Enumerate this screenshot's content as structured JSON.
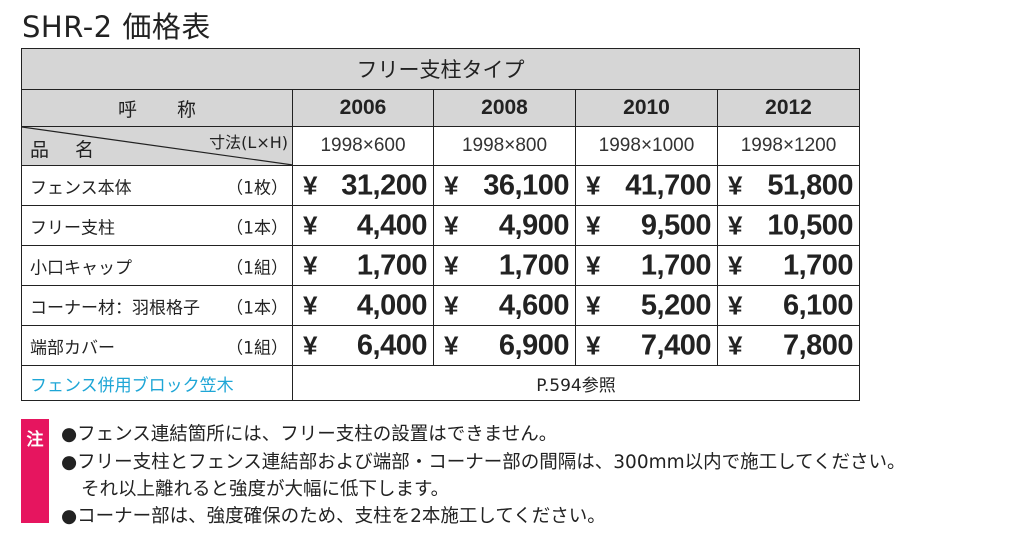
{
  "title": "SHR-2 価格表",
  "table": {
    "caption": "フリー支柱タイプ",
    "header_label": "呼称",
    "item_label": "品名",
    "dimension_label": "寸法(L×H)",
    "columns": [
      {
        "code": "2006",
        "size": "1998×600"
      },
      {
        "code": "2008",
        "size": "1998×800"
      },
      {
        "code": "2010",
        "size": "1998×1000"
      },
      {
        "code": "2012",
        "size": "1998×1200"
      }
    ],
    "currency": "¥",
    "rows": [
      {
        "name": "フェンス本体",
        "unit": "（1枚）",
        "prices": [
          "31,200",
          "36,100",
          "41,700",
          "51,800"
        ]
      },
      {
        "name": "フリー支柱",
        "unit": "（1本）",
        "prices": [
          "4,400",
          "4,900",
          "9,500",
          "10,500"
        ]
      },
      {
        "name": "小口キャップ",
        "unit": "（1組）",
        "prices": [
          "1,700",
          "1,700",
          "1,700",
          "1,700"
        ]
      },
      {
        "name": "コーナー材：羽根格子",
        "unit": "（1本）",
        "prices": [
          "4,000",
          "4,600",
          "5,200",
          "6,100"
        ]
      },
      {
        "name": "端部カバー",
        "unit": "（1組）",
        "prices": [
          "6,400",
          "6,900",
          "7,400",
          "7,800"
        ]
      }
    ],
    "footer": {
      "label": "フェンス併用ブロック笠木",
      "reference": "P.594参照"
    }
  },
  "notes": {
    "badge": "注",
    "lines": [
      "●フェンス連結箇所には、フリー支柱の設置はできません。",
      "●フリー支柱とフェンス連結部および端部・コーナー部の間隔は、300mm以内で施工してください。",
      "それ以上離れると強度が大幅に低下します。",
      "●コーナー部は、強度確保のため、支柱を2本施工してください。"
    ]
  },
  "colors": {
    "header_gray": "#d6d6d6",
    "link_blue": "#1ea6d6",
    "badge_pink": "#e6155f"
  }
}
